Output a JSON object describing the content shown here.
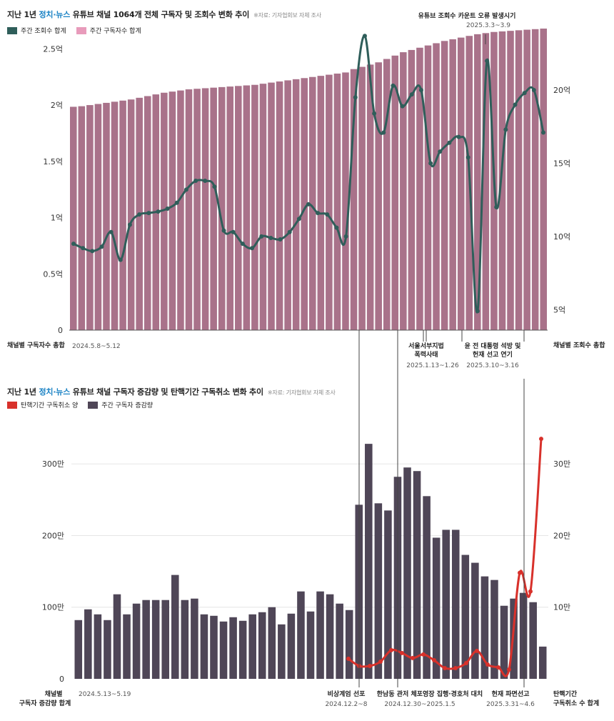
{
  "chart_data": [
    {
      "type": "bar+line",
      "title_parts": [
        "지난 1년 ",
        "정치·뉴스",
        " 유튜브 채널 1064개 전체 구독자 및 조회수 변화 추이"
      ],
      "source": "※자료: 기자협회보 자체 조사",
      "legend": [
        {
          "label": "주간 조회수 합계",
          "color": "#2f5e5a"
        },
        {
          "label": "주간 구독자수 합계",
          "color": "#e89bbb"
        }
      ],
      "left_axis": {
        "ticks": [
          "0",
          "0.5억",
          "1억",
          "1.5억",
          "2억",
          "2.5억"
        ],
        "values": [
          0,
          0.5,
          1,
          1.5,
          2,
          2.5
        ],
        "range": [
          0,
          2.68
        ],
        "label": "채널별 구독자수 총합"
      },
      "right_axis": {
        "ticks": [
          "5억",
          "10억",
          "15억",
          "20억"
        ],
        "values": [
          5,
          10,
          15,
          20
        ],
        "range": [
          3.6,
          24.2
        ],
        "label": "채널별 조회수 총합"
      },
      "bar_color": "#a9728a",
      "bar_values": [
        1.985,
        1.99,
        2.0,
        2.01,
        2.02,
        2.03,
        2.04,
        2.05,
        2.065,
        2.08,
        2.095,
        2.11,
        2.12,
        2.13,
        2.14,
        2.145,
        2.15,
        2.155,
        2.16,
        2.165,
        2.17,
        2.175,
        2.18,
        2.19,
        2.2,
        2.21,
        2.22,
        2.23,
        2.24,
        2.25,
        2.26,
        2.27,
        2.28,
        2.29,
        2.32,
        2.34,
        2.36,
        2.38,
        2.41,
        2.44,
        2.47,
        2.49,
        2.51,
        2.53,
        2.55,
        2.57,
        2.585,
        2.6,
        2.615,
        2.63,
        2.64,
        2.65,
        2.655,
        2.66,
        2.665,
        2.67,
        2.675,
        2.68
      ],
      "line_color": "#2f5e5a",
      "line_values": [
        9.5,
        9.2,
        9.0,
        9.3,
        10.3,
        8.4,
        10.8,
        11.5,
        11.6,
        11.7,
        11.9,
        12.3,
        13.2,
        13.8,
        13.8,
        13.4,
        10.4,
        10.3,
        9.5,
        9.2,
        10.0,
        9.9,
        9.8,
        10.3,
        11.2,
        12.2,
        11.6,
        11.5,
        10.6,
        10.0,
        19.5,
        23.7,
        18.4,
        17.1,
        20.3,
        18.9,
        19.7,
        20.0,
        15.0,
        15.8,
        16.4,
        16.8,
        15.4,
        4.9,
        22.0,
        12.0,
        17.3,
        19.0,
        19.8,
        20.0,
        17.1
      ],
      "x_labels": [
        {
          "text": "2024.5.8~5.12"
        },
        {
          "text": "서울서부지법 폭력사태",
          "sub": "2025.1.13~1.26"
        },
        {
          "text": "윤 전 대통령 석방 및 헌재 선고 연기",
          "sub": "2025.3.10~3.16"
        }
      ],
      "top_annotation": {
        "text": "유튜브 조회수 카운트 오류 발생시기",
        "sub": "2025.3.3~3.9"
      }
    },
    {
      "type": "bar+line",
      "title_parts": [
        "지난 1년 ",
        "정치·뉴스",
        " 유튜브 채널 구독자 증감량 및 탄핵기간 구독취소 변화 추이"
      ],
      "source": "※자료: 기자협회보 자체 조사",
      "legend": [
        {
          "label": "탄핵기간 구독취소 양",
          "color": "#d8312b"
        },
        {
          "label": "주간 구독자 증감량",
          "color": "#4f4657"
        }
      ],
      "left_axis": {
        "ticks": [
          "0",
          "100만",
          "200만",
          "300만"
        ],
        "values": [
          0,
          100,
          200,
          300
        ],
        "range": [
          0,
          375
        ],
        "label": "채널별 구독자 증감량 합계"
      },
      "right_axis": {
        "ticks": [
          "10만",
          "20만",
          "30만"
        ],
        "values": [
          10,
          20,
          30
        ],
        "range": [
          0,
          37.5
        ],
        "label": "탄핵기간 구독취소 수 합계"
      },
      "bar_color": "#4f4657",
      "bar_values": [
        82,
        97,
        90,
        82,
        118,
        90,
        105,
        110,
        110,
        110,
        145,
        110,
        112,
        90,
        88,
        80,
        86,
        81,
        90,
        93,
        100,
        76,
        91,
        122,
        94,
        122,
        118,
        105,
        96,
        243,
        328,
        245,
        235,
        282,
        295,
        290,
        255,
        197,
        208,
        208,
        173,
        162,
        143,
        138,
        102,
        112,
        120,
        107,
        45
      ],
      "line_color": "#d8312b",
      "line_values": [
        2.8,
        1.8,
        1.8,
        2.4,
        4.0,
        3.6,
        2.9,
        3.4,
        2.6,
        1.5,
        1.5,
        2.2,
        3.9,
        2.0,
        1.6,
        1.3,
        14.8,
        12.2,
        33.5
      ],
      "x_labels": [
        {
          "text": "2024.5.13~5.19"
        },
        {
          "text": "비상계엄 선포",
          "sub": "2024.12.2~8"
        },
        {
          "text": "한남동 관저 체포영장 집행·경호처 대치",
          "sub": "2024.12.30~2025.1.5"
        },
        {
          "text": "헌재 파면선고",
          "sub": "2025.3.31~4.6"
        }
      ]
    }
  ]
}
